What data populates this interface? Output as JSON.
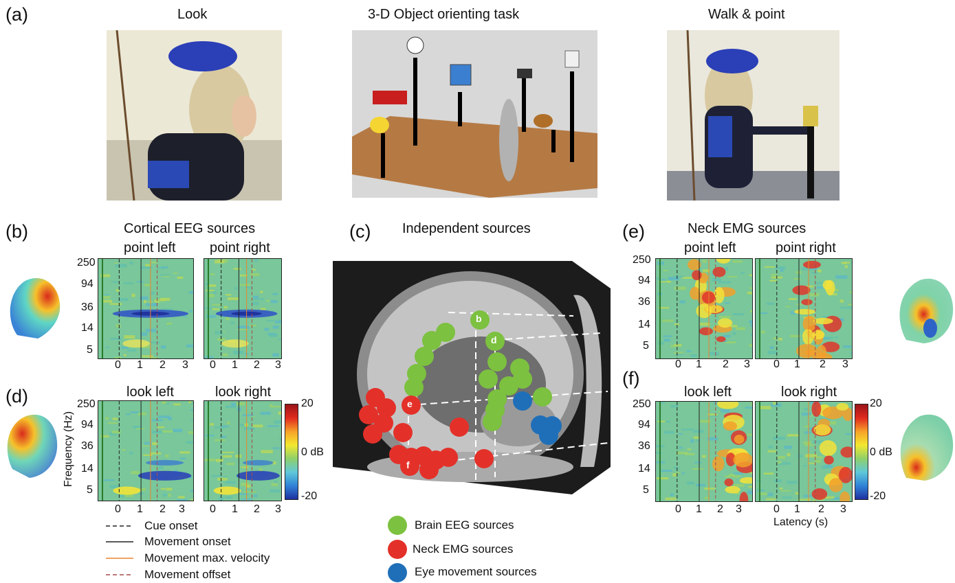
{
  "panels": {
    "a": {
      "letter": "(a)",
      "titles": [
        "Look",
        "3-D Object orienting task",
        "Walk & point"
      ]
    },
    "b": {
      "letter": "(b)",
      "title": "Cortical EEG sources",
      "left": "point left",
      "right": "point right"
    },
    "c": {
      "letter": "(c)",
      "title": "Independent sources"
    },
    "d": {
      "letter": "(d)",
      "left": "look left",
      "right": "look right"
    },
    "e": {
      "letter": "(e)",
      "title": "Neck EMG sources",
      "left": "point left",
      "right": "point right"
    },
    "f": {
      "letter": "(f)",
      "left": "look left",
      "right": "look right"
    }
  },
  "axes": {
    "freq_ticks": [
      "250",
      "94",
      "36",
      "14",
      "5"
    ],
    "lat_ticks": [
      "0",
      "1",
      "2",
      "3"
    ],
    "ylabel": "Frequency (Hz)",
    "xlabel": "Latency (s)"
  },
  "colorbar": {
    "max": "20",
    "mid": "0 dB",
    "min": "-20"
  },
  "line_legend": [
    {
      "label": "Cue onset",
      "color": "#222222",
      "style": "dashed"
    },
    {
      "label": "Movement onset",
      "color": "#222222",
      "style": "solid"
    },
    {
      "label": "Movement max. velocity",
      "color": "#e8862e",
      "style": "solid"
    },
    {
      "label": "Movement offset",
      "color": "#a84a4a",
      "style": "dashed"
    }
  ],
  "source_legend": [
    {
      "label": "Brain EEG sources",
      "color": "#7cc13f"
    },
    {
      "label": "Neck EMG sources",
      "color": "#e3312a"
    },
    {
      "label": "Eye movement sources",
      "color": "#1f6fb8"
    }
  ],
  "brain_labels": [
    "b",
    "d",
    "e",
    "f"
  ]
}
